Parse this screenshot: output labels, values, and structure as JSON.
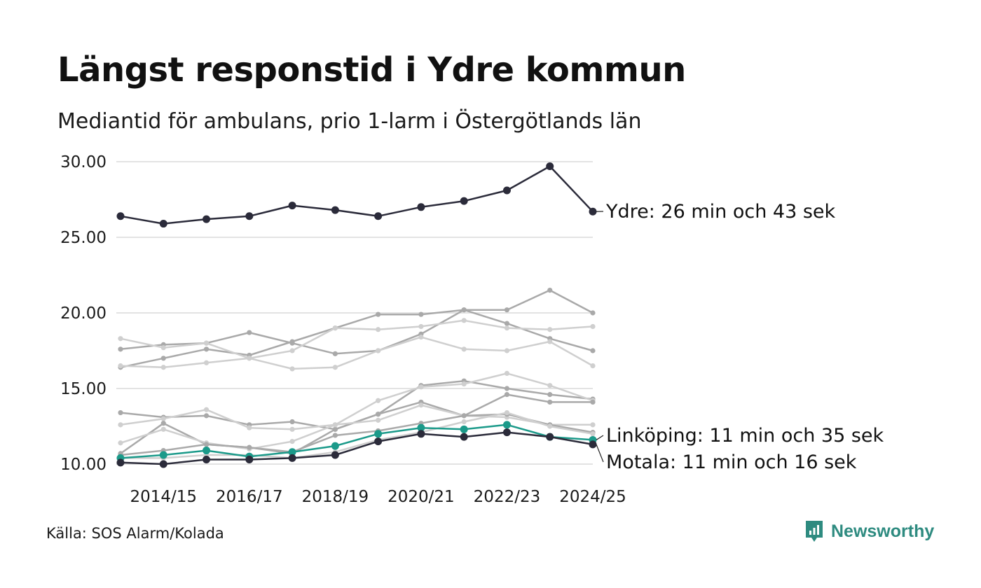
{
  "title": "Längst responstid i Ydre kommun",
  "subtitle": "Mediantid för ambulans, prio 1-larm i Östergötlands län",
  "source": "Källa: SOS Alarm/Kolada",
  "brand": {
    "name": "Newsworthy"
  },
  "colors": {
    "highlight": "#2b2b3a",
    "accent": "#1b9a8a",
    "others_dark": "#a9a9a9",
    "others_light": "#cfcfcf",
    "grid": "#e3e3e3",
    "brand": "#2e8b80"
  },
  "chart_data": {
    "type": "line",
    "title": "Längst responstid i Ydre kommun",
    "subtitle": "Mediantid för ambulans, prio 1-larm i Östergötlands län",
    "xlabel": "",
    "ylabel": "",
    "ylim": [
      10,
      30
    ],
    "yticks": [
      10,
      15,
      20,
      25,
      30
    ],
    "ytick_labels": [
      "10.00",
      "15.00",
      "20.00",
      "25.00",
      "30.00"
    ],
    "categories": [
      "2013/14",
      "2014/15",
      "2015/16",
      "2016/17",
      "2017/18",
      "2018/19",
      "2019/20",
      "2020/21",
      "2021/22",
      "2022/23",
      "2023/24",
      "2024/25"
    ],
    "xtick_labels": [
      "2014/15",
      "2016/17",
      "2018/19",
      "2020/21",
      "2022/23",
      "2024/25"
    ],
    "grid": true,
    "highlighted_series": [
      {
        "name": "Ydre",
        "label": "Ydre: 26 min och 43 sek",
        "style": "highlight",
        "values": [
          26.4,
          25.9,
          26.2,
          26.4,
          27.1,
          26.8,
          26.4,
          27.0,
          27.4,
          28.1,
          29.7,
          26.7
        ]
      },
      {
        "name": "Linköping",
        "label": "Linköping: 11 min och 35 sek",
        "style": "accent",
        "values": [
          10.4,
          10.6,
          10.9,
          10.5,
          10.8,
          11.2,
          12.0,
          12.4,
          12.3,
          12.6,
          11.8,
          11.6
        ]
      },
      {
        "name": "Motala",
        "label": "Motala: 11 min och 16 sek",
        "style": "highlight",
        "values": [
          10.1,
          10.0,
          10.3,
          10.3,
          10.4,
          10.6,
          11.5,
          12.0,
          11.8,
          12.1,
          11.8,
          11.3
        ]
      }
    ],
    "other_series": [
      {
        "shade": "dark",
        "values": [
          16.4,
          17.0,
          17.6,
          17.2,
          18.1,
          19.0,
          19.9,
          19.9,
          20.2,
          20.2,
          21.5,
          20.0
        ]
      },
      {
        "shade": "dark",
        "values": [
          17.6,
          17.9,
          18.0,
          18.7,
          18.0,
          17.3,
          17.5,
          18.6,
          20.2,
          19.3,
          18.3,
          17.5
        ]
      },
      {
        "shade": "light",
        "values": [
          18.3,
          17.7,
          18.0,
          17.0,
          17.5,
          19.0,
          18.9,
          19.1,
          19.5,
          19.0,
          18.9,
          19.1
        ]
      },
      {
        "shade": "light",
        "values": [
          16.5,
          16.4,
          16.7,
          17.0,
          16.3,
          16.4,
          17.5,
          18.4,
          17.6,
          17.5,
          18.1,
          16.5
        ]
      },
      {
        "shade": "dark",
        "values": [
          13.4,
          13.1,
          13.2,
          12.6,
          12.8,
          12.3,
          13.3,
          15.2,
          15.5,
          15.0,
          14.6,
          14.3
        ]
      },
      {
        "shade": "light",
        "values": [
          12.6,
          13.0,
          13.6,
          12.4,
          12.3,
          12.6,
          14.2,
          15.1,
          15.3,
          16.0,
          15.2,
          14.2
        ]
      },
      {
        "shade": "dark",
        "values": [
          10.7,
          12.7,
          11.3,
          11.1,
          10.7,
          12.3,
          13.3,
          14.1,
          13.2,
          14.6,
          14.1,
          14.1
        ]
      },
      {
        "shade": "light",
        "values": [
          11.4,
          12.3,
          11.4,
          11.0,
          11.5,
          12.6,
          12.9,
          13.9,
          13.2,
          13.1,
          12.6,
          12.6
        ]
      },
      {
        "shade": "dark",
        "values": [
          10.6,
          10.9,
          11.3,
          11.1,
          10.8,
          11.9,
          12.2,
          12.7,
          13.2,
          13.3,
          12.6,
          12.1
        ]
      },
      {
        "shade": "light",
        "values": [
          10.4,
          10.4,
          10.6,
          10.6,
          10.4,
          10.8,
          11.6,
          12.1,
          12.8,
          13.4,
          12.5,
          12.0
        ]
      }
    ]
  }
}
